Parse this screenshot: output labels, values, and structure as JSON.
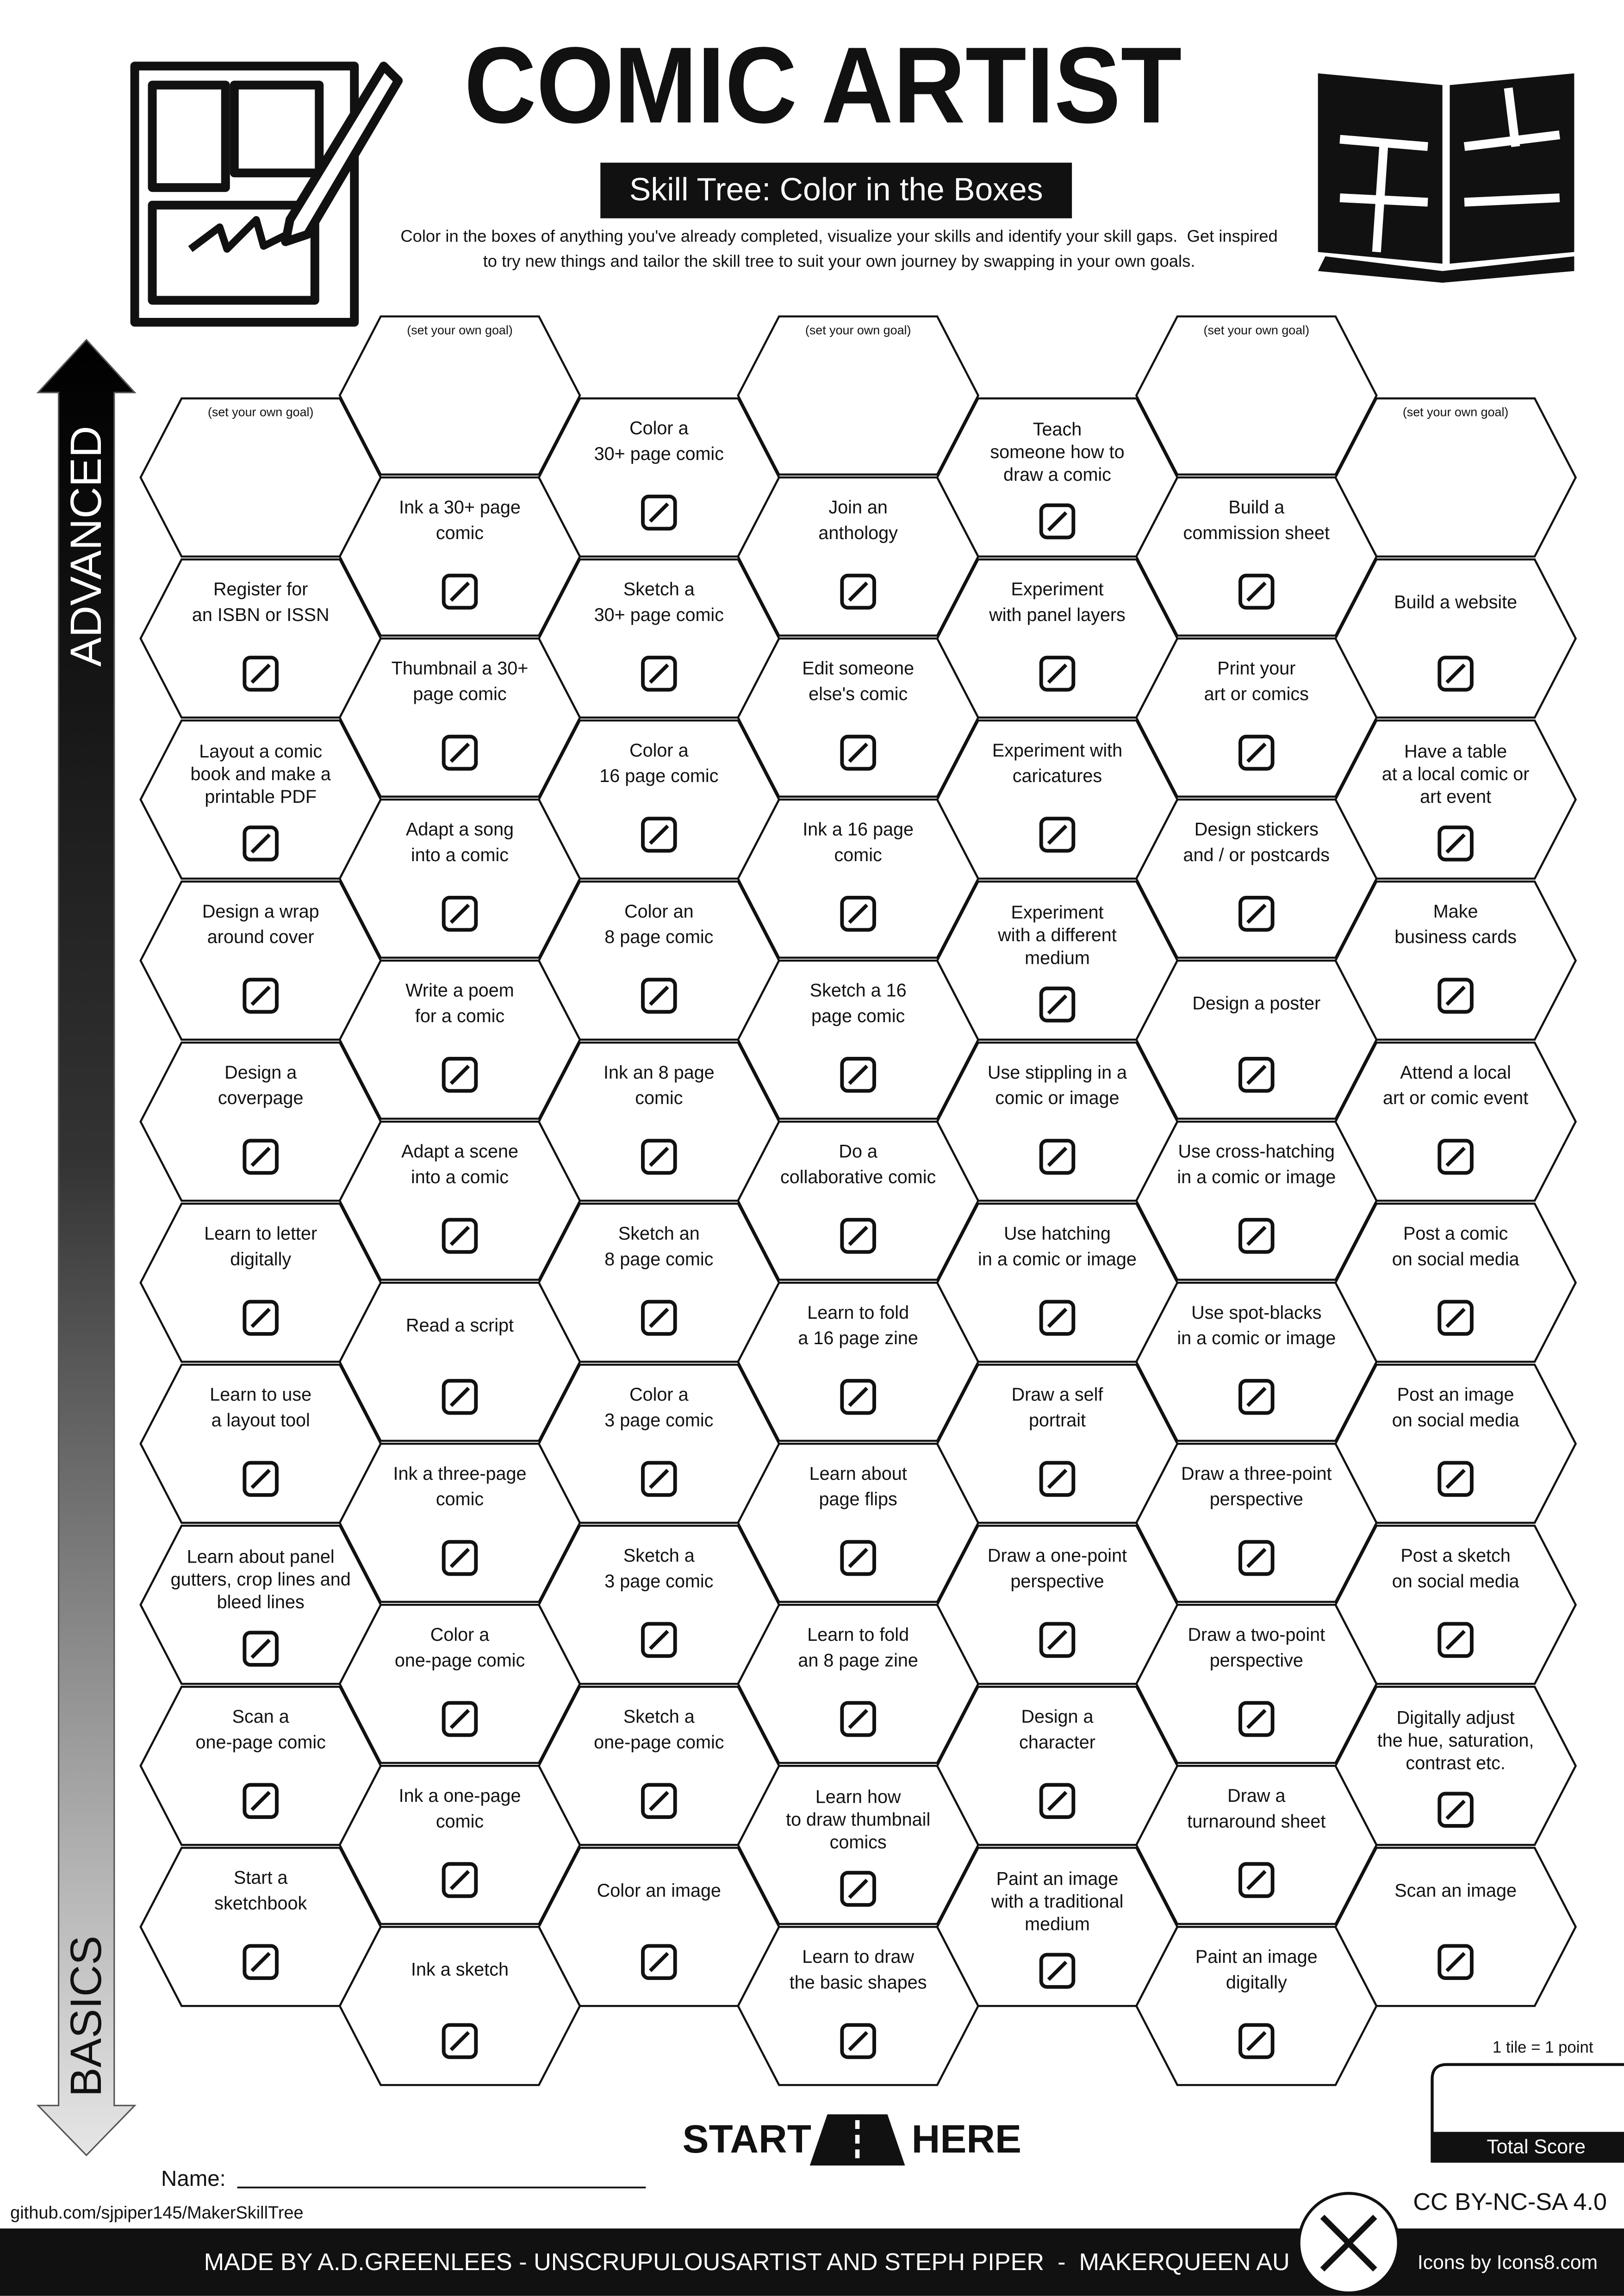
{
  "header": {
    "title": "COMIC ARTIST",
    "subtitle": "Skill Tree: Color in the Boxes",
    "description": [
      "Color in the boxes of anything you've already completed, visualize your skills and identify your skill gaps.  Get inspired",
      "to try new things and tailor the skill tree to suit your own journey by swapping in your own goals."
    ]
  },
  "axis": {
    "top": "ADVANCED",
    "bottom": "BASICS"
  },
  "columns": [
    [
      {
        "goal": "(set your own goal)"
      },
      {
        "lines": [
          "Register for",
          "an ISBN or ISSN"
        ]
      },
      {
        "lines": [
          "Layout a comic",
          "book and make a",
          "printable PDF"
        ]
      },
      {
        "lines": [
          "Design a wrap",
          "around cover"
        ]
      },
      {
        "lines": [
          "Design a",
          "coverpage"
        ]
      },
      {
        "lines": [
          "Learn to letter",
          "digitally"
        ]
      },
      {
        "lines": [
          "Learn to use",
          "a layout tool"
        ]
      },
      {
        "lines": [
          "Learn about panel",
          "gutters, crop lines and",
          "bleed lines"
        ]
      },
      {
        "lines": [
          "Scan a",
          "one-page comic"
        ]
      },
      {
        "lines": [
          "Start a",
          "sketchbook"
        ]
      }
    ],
    [
      {
        "goal": "(set your own goal)"
      },
      {
        "lines": [
          "Ink a 30+ page",
          "comic"
        ]
      },
      {
        "lines": [
          "Thumbnail a 30+",
          "page comic"
        ]
      },
      {
        "lines": [
          "Adapt a song",
          "into a comic"
        ]
      },
      {
        "lines": [
          "Write a poem",
          "for a comic"
        ]
      },
      {
        "lines": [
          "Adapt a scene",
          "into a comic"
        ]
      },
      {
        "lines": [
          "Read a script"
        ]
      },
      {
        "lines": [
          "Ink a three-page",
          "comic"
        ]
      },
      {
        "lines": [
          "Color a",
          "one-page comic"
        ]
      },
      {
        "lines": [
          "Ink a one-page",
          "comic"
        ]
      },
      {
        "lines": [
          "Ink a sketch"
        ]
      }
    ],
    [
      {
        "lines": [
          "Color a",
          "30+ page comic"
        ]
      },
      {
        "lines": [
          "Sketch a",
          "30+ page comic"
        ]
      },
      {
        "lines": [
          "Color a",
          "16 page comic"
        ]
      },
      {
        "lines": [
          "Color an",
          "8 page comic"
        ]
      },
      {
        "lines": [
          "Ink an 8 page",
          "comic"
        ]
      },
      {
        "lines": [
          "Sketch an",
          "8 page comic"
        ]
      },
      {
        "lines": [
          "Color a",
          "3 page comic"
        ]
      },
      {
        "lines": [
          "Sketch a",
          "3 page comic"
        ]
      },
      {
        "lines": [
          "Sketch a",
          "one-page comic"
        ]
      },
      {
        "lines": [
          "Color an image"
        ]
      }
    ],
    [
      {
        "goal": "(set your own goal)"
      },
      {
        "lines": [
          "Join an",
          "anthology"
        ]
      },
      {
        "lines": [
          "Edit someone",
          "else's comic"
        ]
      },
      {
        "lines": [
          "Ink a 16 page",
          "comic"
        ]
      },
      {
        "lines": [
          "Sketch a 16",
          "page comic"
        ]
      },
      {
        "lines": [
          "Do a",
          "collaborative comic"
        ]
      },
      {
        "lines": [
          "Learn to fold",
          "a 16 page zine"
        ]
      },
      {
        "lines": [
          "Learn about",
          "page flips"
        ]
      },
      {
        "lines": [
          "Learn to fold",
          "an 8 page zine"
        ]
      },
      {
        "lines": [
          "Learn how",
          "to draw thumbnail",
          "comics"
        ]
      },
      {
        "lines": [
          "Learn to draw",
          "the basic shapes"
        ]
      }
    ],
    [
      {
        "lines": [
          "Teach",
          "someone how to",
          "draw a comic"
        ]
      },
      {
        "lines": [
          "Experiment",
          "with panel layers"
        ]
      },
      {
        "lines": [
          "Experiment with",
          "caricatures"
        ]
      },
      {
        "lines": [
          "Experiment",
          "with a different",
          "medium"
        ]
      },
      {
        "lines": [
          "Use stippling in a",
          "comic or image"
        ]
      },
      {
        "lines": [
          "Use hatching",
          "in a comic or image"
        ]
      },
      {
        "lines": [
          "Draw a self",
          "portrait"
        ]
      },
      {
        "lines": [
          "Draw a one-point",
          "perspective"
        ]
      },
      {
        "lines": [
          "Design a",
          "character"
        ]
      },
      {
        "lines": [
          "Paint an image",
          "with a traditional",
          "medium"
        ]
      }
    ],
    [
      {
        "goal": "(set your own goal)"
      },
      {
        "lines": [
          "Build a",
          "commission sheet"
        ]
      },
      {
        "lines": [
          "Print your",
          "art or comics"
        ]
      },
      {
        "lines": [
          "Design stickers",
          "and / or postcards"
        ]
      },
      {
        "lines": [
          "Design a poster"
        ]
      },
      {
        "lines": [
          "Use cross-hatching",
          "in a comic or image"
        ]
      },
      {
        "lines": [
          "Use spot-blacks",
          "in a comic or image"
        ]
      },
      {
        "lines": [
          "Draw a three-point",
          "perspective"
        ]
      },
      {
        "lines": [
          "Draw a two-point",
          "perspective"
        ]
      },
      {
        "lines": [
          "Draw a",
          "turnaround sheet"
        ]
      },
      {
        "lines": [
          "Paint an image",
          "digitally"
        ]
      }
    ],
    [
      {
        "goal": "(set your own goal)"
      },
      {
        "lines": [
          "Build a website"
        ]
      },
      {
        "lines": [
          "Have a table",
          "at a local comic or",
          "art event"
        ]
      },
      {
        "lines": [
          "Make",
          "business cards"
        ]
      },
      {
        "lines": [
          "Attend a local",
          "art or comic event"
        ]
      },
      {
        "lines": [
          "Post a comic",
          "on social media"
        ]
      },
      {
        "lines": [
          "Post an image",
          "on social media"
        ]
      },
      {
        "lines": [
          "Post a sketch",
          "on social media"
        ]
      },
      {
        "lines": [
          "Digitally adjust",
          "the hue, saturation,",
          "contrast etc."
        ]
      },
      {
        "lines": [
          "Scan an image"
        ]
      }
    ]
  ],
  "footer": {
    "start": "START",
    "here": "HERE",
    "name_label": "Name:",
    "url": "github.com/sjpiper145/MakerSkillTree",
    "score_note": "1 tile = 1 point",
    "score_label": "Total Score",
    "license": "CC BY-NC-SA 4.0",
    "credits": "MADE BY A.D.GREENLEES - UNSCRUPULOUSARTIST AND STEPH PIPER  -  MAKERQUEEN AU",
    "icons_credit": "Icons by Icons8.com"
  }
}
